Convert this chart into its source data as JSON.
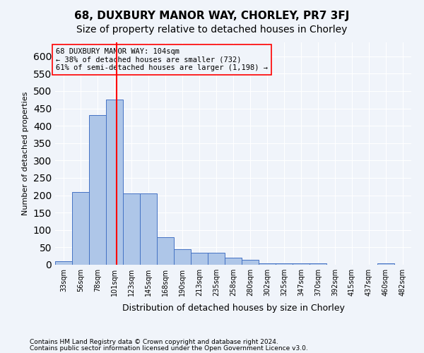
{
  "title": "68, DUXBURY MANOR WAY, CHORLEY, PR7 3FJ",
  "subtitle": "Size of property relative to detached houses in Chorley",
  "xlabel": "Distribution of detached houses by size in Chorley",
  "ylabel": "Number of detached properties",
  "footnote1": "Contains HM Land Registry data © Crown copyright and database right 2024.",
  "footnote2": "Contains public sector information licensed under the Open Government Licence v3.0.",
  "annotation_line1": "68 DUXBURY MANOR WAY: 104sqm",
  "annotation_line2": "← 38% of detached houses are smaller (732)",
  "annotation_line3": "61% of semi-detached houses are larger (1,198) →",
  "bar_color": "#aec6e8",
  "bar_edge_color": "#4472c4",
  "vline_color": "red",
  "vline_x": 104,
  "categories": [
    "33sqm",
    "56sqm",
    "78sqm",
    "101sqm",
    "123sqm",
    "145sqm",
    "168sqm",
    "190sqm",
    "213sqm",
    "235sqm",
    "258sqm",
    "280sqm",
    "302sqm",
    "325sqm",
    "347sqm",
    "370sqm",
    "392sqm",
    "415sqm",
    "437sqm",
    "460sqm",
    "482sqm"
  ],
  "bin_edges": [
    22,
    44.5,
    67,
    89.5,
    112,
    134.5,
    157,
    179.5,
    202,
    224.5,
    247,
    269.5,
    292,
    314.5,
    337,
    359.5,
    382,
    404.5,
    427,
    449.5,
    472,
    494.5
  ],
  "bar_heights": [
    10,
    210,
    430,
    475,
    205,
    205,
    80,
    45,
    35,
    35,
    20,
    15,
    5,
    5,
    5,
    5,
    0,
    0,
    0,
    5,
    0
  ],
  "ylim": [
    0,
    640
  ],
  "yticks": [
    0,
    50,
    100,
    150,
    200,
    250,
    300,
    350,
    400,
    450,
    500,
    550,
    600
  ],
  "background_color": "#f0f4fa",
  "grid_color": "#ffffff",
  "box_color": "red",
  "title_fontsize": 11,
  "subtitle_fontsize": 10
}
